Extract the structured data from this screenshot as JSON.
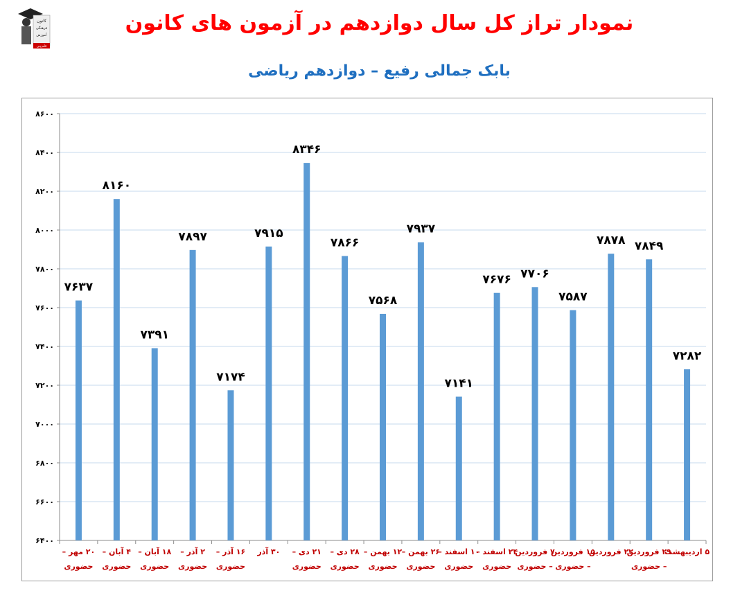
{
  "header": {
    "title": "نمودار تراز کل سال دوازدهم در آزمون های کانون",
    "subtitle": "بابک جمالی رفیع – دوازدهم ریاضی",
    "logo_text": [
      "کانون",
      "فرهنگی",
      "آموزش",
      "قلم‌چی"
    ]
  },
  "colors": {
    "title": "#ff0000",
    "subtitle": "#1f6fc0",
    "bar": "#5b9bd5",
    "category_label": "#c00000",
    "value_label": "#000000",
    "grid": "#c6d9ee"
  },
  "chart_data": {
    "type": "bar",
    "title": "",
    "xlabel": "",
    "ylabel": "",
    "ylim": [
      6400,
      8600
    ],
    "yticks": [
      6400,
      6600,
      6800,
      7000,
      7200,
      7400,
      7600,
      7800,
      8000,
      8200,
      8400,
      8600
    ],
    "ytick_labels": [
      "۶۴۰۰",
      "۶۶۰۰",
      "۶۸۰۰",
      "۷۰۰۰",
      "۷۲۰۰",
      "۷۴۰۰",
      "۷۶۰۰",
      "۷۸۰۰",
      "۸۰۰۰",
      "۸۲۰۰",
      "۸۴۰۰",
      "۸۶۰۰"
    ],
    "grid": true,
    "legend": "none",
    "categories": [
      [
        "۲۰ مهر –",
        "حضوری"
      ],
      [
        "۴ آبان –",
        "حضوری"
      ],
      [
        "۱۸ آبان –",
        "حضوری"
      ],
      [
        "۲ آذر –",
        "حضوری"
      ],
      [
        "۱۶ آذر –",
        "حضوری"
      ],
      [
        "۳۰ آذر"
      ],
      [
        "۲۱ دی –",
        "حضوری"
      ],
      [
        "۲۸ دی –",
        "حضوری"
      ],
      [
        "۱۲ بهمن –",
        "حضوری"
      ],
      [
        "۲۶ بهمن –",
        "حضوری"
      ],
      [
        "۱۰ اسفند –",
        "حضوری"
      ],
      [
        "۲۴ اسفند –",
        "حضوری"
      ],
      [
        "۷ فروردین",
        "– حضوری"
      ],
      [
        "۱۵ فروردین",
        "– حضوری"
      ],
      [
        "۲۲ فروردین"
      ],
      [
        "۲۹ فروردین",
        "– حضوری"
      ],
      [
        "۵ اردیبهشت"
      ]
    ],
    "values": [
      7637,
      8160,
      7391,
      7897,
      7174,
      7915,
      8346,
      7866,
      7568,
      7937,
      7141,
      7676,
      7706,
      7587,
      7878,
      7849,
      7282
    ],
    "value_labels": [
      "۷۶۳۷",
      "۸۱۶۰",
      "۷۳۹۱",
      "۷۸۹۷",
      "۷۱۷۴",
      "۷۹۱۵",
      "۸۳۴۶",
      "۷۸۶۶",
      "۷۵۶۸",
      "۷۹۳۷",
      "۷۱۴۱",
      "۷۶۷۶",
      "۷۷۰۶",
      "۷۵۸۷",
      "۷۸۷۸",
      "۷۸۴۹",
      "۷۲۸۲"
    ]
  }
}
